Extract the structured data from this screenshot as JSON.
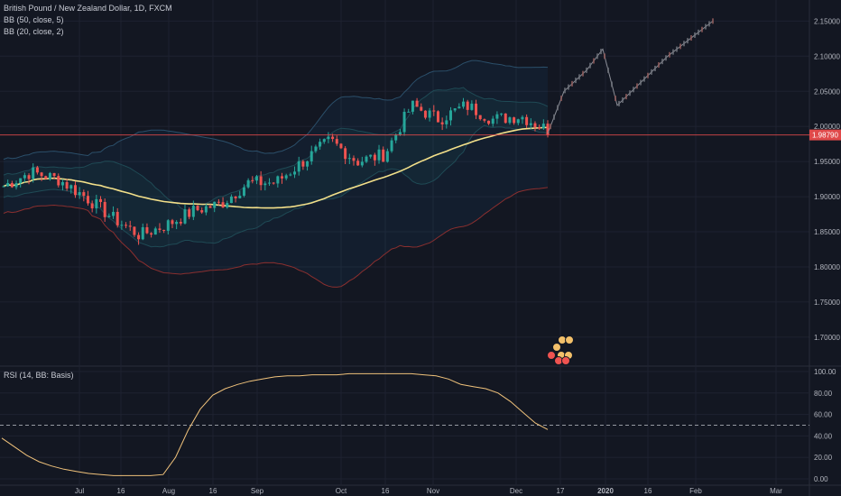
{
  "header": {
    "symbol_line": "British Pound / New Zealand Dollar, 1D, FXCM",
    "bb50_label": "BB (50, close, 5)",
    "bb20_label": "BB (20, close, 2)",
    "rsi_label": "RSI (14, BB: Basis)"
  },
  "colors": {
    "background": "#131722",
    "grid": "#1e2230",
    "up": "#26a69a",
    "down": "#ef5350",
    "ma": "#f3e08a",
    "bb50": "#2b4f6a",
    "bb20_lower": "#8a2f2f",
    "price_line": "#e0494a",
    "rsi": "#f0c27b"
  },
  "price_badge": "1.98790",
  "chart_data": [
    {
      "type": "candlestick",
      "title": "British Pound / New Zealand Dollar, 1D, FXCM",
      "yaxis": {
        "ticks": [
          "2.15000",
          "2.10000",
          "2.05000",
          "2.00000",
          "1.95000",
          "1.90000",
          "1.85000",
          "1.80000",
          "1.75000",
          "1.70000"
        ],
        "range": [
          1.66,
          2.18
        ],
        "current_price": 1.9879
      },
      "xaxis": {
        "ticks": [
          "Jul",
          "16",
          "Aug",
          "16",
          "Sep",
          "Oct",
          "16",
          "Nov",
          "Dec",
          "17",
          "2020",
          "16",
          "Feb",
          "Mar"
        ]
      },
      "ohlc_anchors": [
        [
          1.925,
          1.915
        ],
        [
          1.93,
          1.935
        ],
        [
          1.92,
          1.925
        ],
        [
          1.88,
          1.9
        ],
        [
          1.86,
          1.87
        ],
        [
          1.85,
          1.845
        ],
        [
          1.855,
          1.86
        ],
        [
          1.87,
          1.88
        ],
        [
          1.88,
          1.89
        ],
        [
          1.9,
          1.92
        ],
        [
          1.93,
          1.92
        ],
        [
          1.92,
          1.95
        ],
        [
          1.97,
          1.98
        ],
        [
          1.96,
          1.95
        ],
        [
          1.94,
          1.96
        ],
        [
          2.0,
          2.03
        ],
        [
          2.03,
          2.01
        ],
        [
          2.02,
          2.03
        ],
        [
          2.025,
          2.01
        ],
        [
          2.01,
          2.015
        ],
        [
          2.005,
          1.995
        ]
      ],
      "series": [
        {
          "name": "BB (50, close, 5)"
        },
        {
          "name": "BB (20, close, 2)"
        }
      ],
      "projection_points": [
        [
          2.0,
          1.99
        ],
        [
          2.0,
          2.05
        ],
        [
          2.05,
          2.08
        ],
        [
          2.08,
          2.11
        ],
        [
          2.11,
          2.03
        ],
        [
          2.03,
          2.06
        ],
        [
          2.06,
          2.1
        ],
        [
          2.1,
          2.15
        ]
      ]
    },
    {
      "type": "line",
      "title": "RSI (14, BB: Basis)",
      "yaxis": {
        "ticks": [
          "100.00",
          "80.00",
          "60.00",
          "40.00",
          "20.00",
          "0.00"
        ],
        "range": [
          0,
          100
        ],
        "dashed_level": 50
      },
      "values": [
        38,
        30,
        22,
        16,
        12,
        9,
        7,
        5,
        4,
        3,
        3,
        3,
        3,
        4,
        20,
        45,
        65,
        78,
        84,
        88,
        91,
        93,
        95,
        96,
        96,
        97,
        97,
        97,
        98,
        98,
        98,
        98,
        98,
        98,
        97,
        96,
        93,
        88,
        86,
        84,
        80,
        72,
        62,
        52,
        46
      ]
    }
  ]
}
